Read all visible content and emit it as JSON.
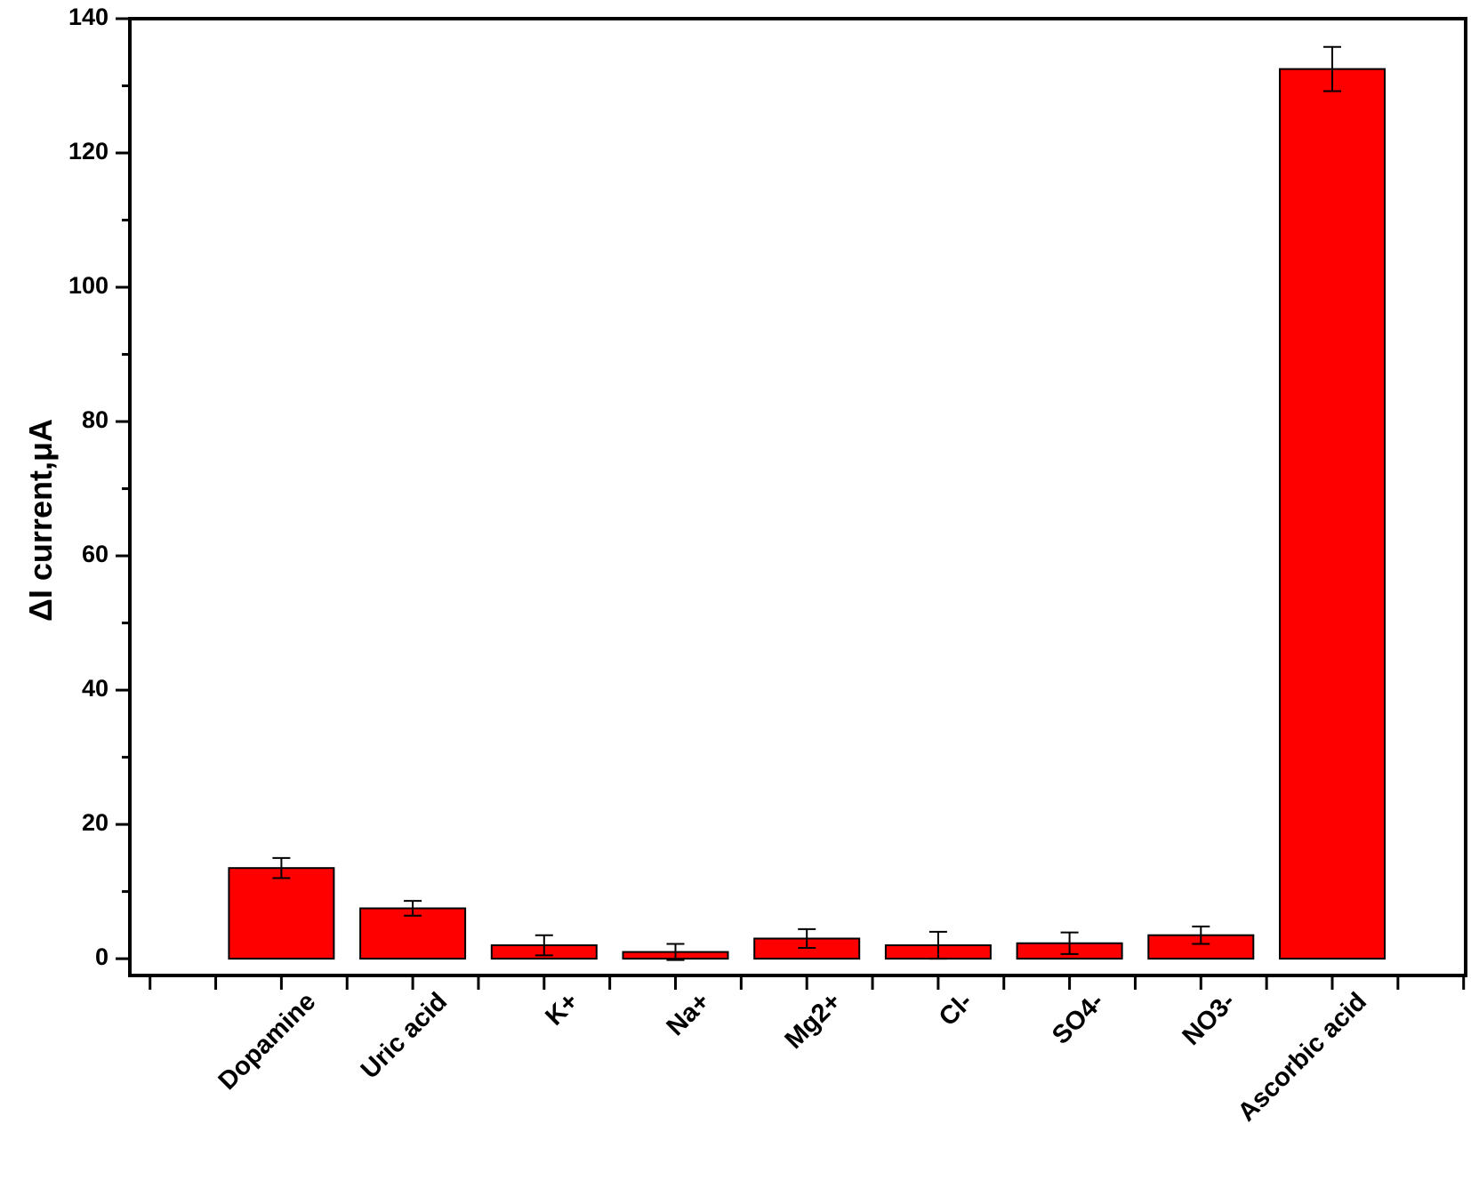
{
  "chart_data": {
    "type": "bar",
    "y_label": "ΔI current,μA",
    "categories": [
      "Dopamine",
      "Uric acid",
      "K+",
      "Na+",
      "Mg2+",
      "Cl-",
      "SO4-",
      "NO3-",
      "Ascorbic acid"
    ],
    "values": [
      13.5,
      7.5,
      2,
      1,
      3,
      2,
      2.3,
      3.5,
      132.5
    ],
    "errors": [
      1.5,
      1.1,
      1.5,
      1.2,
      1.4,
      2,
      1.6,
      1.3,
      3.3
    ],
    "color": "#ff0000",
    "ylim": [
      -2.5,
      140
    ],
    "yticks": [
      0,
      20,
      40,
      60,
      80,
      100,
      120,
      140
    ]
  }
}
